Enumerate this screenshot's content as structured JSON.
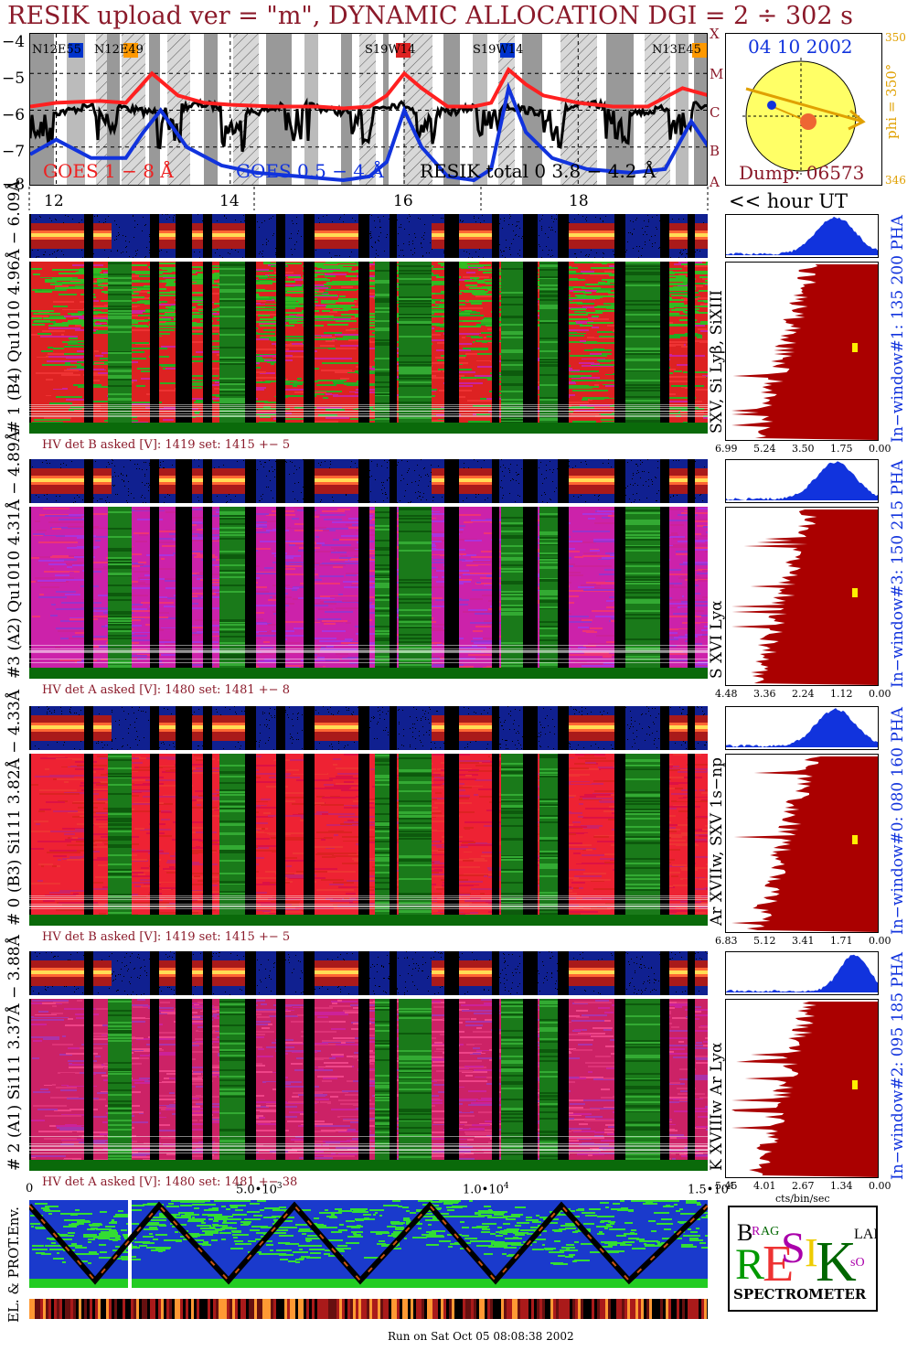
{
  "title": "RESIK upload ver = \"m\", DYNAMIC ALLOCATION  DGI =   2 ÷ 302 s",
  "goes": {
    "yticks": [
      "−4",
      "−5",
      "−6",
      "−7",
      "−8"
    ],
    "class_letters": [
      "X",
      "M",
      "C",
      "B",
      "A"
    ],
    "regions": [
      {
        "label": "N12E55",
        "color": "#0033cc"
      },
      {
        "label": "N12E49",
        "color": "#ff9900"
      },
      {
        "label": "S19W14",
        "color": "#dd2222"
      },
      {
        "label": "S19W14",
        "color": "#0033cc"
      },
      {
        "label": "N13E45",
        "color": "#ff9900"
      }
    ],
    "legend_red": "GOES 1 − 8 Å",
    "legend_blue": "GOES 0.5 − 4 Å",
    "legend_black": "RESIK total 0 3.8 − 4.2 Å"
  },
  "sun": {
    "date": "04 10 2002",
    "phi_label": "phi = 350°",
    "phi_top": "350",
    "phi_bottom": "346",
    "dump": "Dump: 06573"
  },
  "time_axis": {
    "ticks": [
      "12",
      "14",
      "16",
      "18"
    ],
    "label": "<< hour UT"
  },
  "panels": [
    {
      "left_label": "# 1 (B4) Qu1010 4.96Å − 6.09Å",
      "right_label": "SXV, Si Lyβ, SiXIII",
      "hv": "HV det B asked [V]:  1419 set:  1415  +−   5",
      "pha_label": "In−window#1:  135 200 PHA",
      "xticks": [
        "6.99",
        "5.24",
        "3.50",
        "1.75",
        "0.00"
      ]
    },
    {
      "left_label": "#3 (A2) Qu1010  4.31Å − 4.89Å",
      "right_label": "S XVI Lyα",
      "hv": "HV det A asked [V]:  1480 set:  1481  +−   8",
      "pha_label": "In−window#3:  150 215 PHA",
      "xticks": [
        "4.48",
        "3.36",
        "2.24",
        "1.12",
        "0.00"
      ]
    },
    {
      "left_label": "# 0 (B3) Si111  3.82Å − 4.33Å",
      "right_label": "Ar XVIIw,  SXV 1s−np",
      "hv": "HV det B asked [V]:  1419 set:  1415  +−   5",
      "pha_label": "In−window#0:  080 160 PHA",
      "xticks": [
        "6.83",
        "5.12",
        "3.41",
        "1.71",
        "0.00"
      ]
    },
    {
      "left_label": "# 2 (A1) Si111  3.37Å − 3.88Å",
      "right_label": "K XVIIIw  Ar Lyα",
      "hv": "HV det A asked [V]:  1480 set:  1481  +−  38",
      "pha_label": "In−window#2:  095 185 PHA",
      "xticks": [
        "5.45",
        "4.01",
        "2.67",
        "1.34",
        "0.00"
      ]
    }
  ],
  "counts_axis": {
    "ticks": [
      "0",
      "5.0•10",
      "1.0•10",
      "1.5•10"
    ],
    "exps": [
      "3",
      "4",
      "4"
    ],
    "unit": "cts/bin/sec"
  },
  "env_label": "EL. & PROT.Env.",
  "logo": {
    "line1": "BRAGG",
    "main": "RESIK",
    "side": "SOLAR",
    "bottom": "SPECTROMETER"
  },
  "footer": "Run on Sat Oct 05 08:08:38 2002",
  "chart_data": {
    "type": "line",
    "title": "RESIK upload ver = \"m\", DYNAMIC ALLOCATION  DGI =   2 ÷ 302 s",
    "xlabel": "<< hour UT",
    "ylabel": "",
    "xlim": [
      11.7,
      19.5
    ],
    "ylim": [
      -8,
      -4
    ],
    "series": [
      {
        "name": "GOES 1 − 8 Å",
        "color": "#ff2020",
        "x": [
          11.7,
          12.0,
          12.5,
          12.8,
          13.1,
          13.4,
          13.7,
          14.0,
          14.5,
          15.0,
          15.3,
          15.6,
          15.8,
          16.0,
          16.2,
          16.5,
          16.8,
          17.0,
          17.2,
          17.4,
          17.6,
          18.0,
          18.4,
          18.8,
          19.2,
          19.5
        ],
        "y": [
          -5.9,
          -5.8,
          -5.75,
          -5.8,
          -5.0,
          -5.6,
          -5.8,
          -5.85,
          -5.9,
          -5.9,
          -5.95,
          -5.9,
          -5.6,
          -5.0,
          -5.4,
          -5.9,
          -5.9,
          -5.8,
          -4.9,
          -5.3,
          -5.6,
          -5.8,
          -5.9,
          -5.9,
          -5.4,
          -5.6
        ]
      },
      {
        "name": "GOES 0.5 − 4 Å",
        "color": "#1133dd",
        "x": [
          11.7,
          12.0,
          12.4,
          12.8,
          13.0,
          13.2,
          13.5,
          13.9,
          14.3,
          14.8,
          15.3,
          15.6,
          15.8,
          16.0,
          16.2,
          16.5,
          16.8,
          17.0,
          17.2,
          17.4,
          17.7,
          18.1,
          18.6,
          19.0,
          19.3,
          19.5
        ],
        "y": [
          -7.2,
          -6.8,
          -7.3,
          -7.3,
          -6.6,
          -6.0,
          -7.0,
          -7.5,
          -7.7,
          -7.8,
          -7.9,
          -7.8,
          -7.4,
          -6.0,
          -7.0,
          -7.8,
          -7.9,
          -7.6,
          -5.4,
          -6.6,
          -7.3,
          -7.6,
          -7.7,
          -7.6,
          -6.3,
          -7.0
        ]
      }
    ],
    "legend": [
      "GOES 1 − 8 Å",
      "GOES 0.5 − 4 Å",
      "RESIK total 0 3.8 − 4.2 Å"
    ],
    "grid": true
  }
}
